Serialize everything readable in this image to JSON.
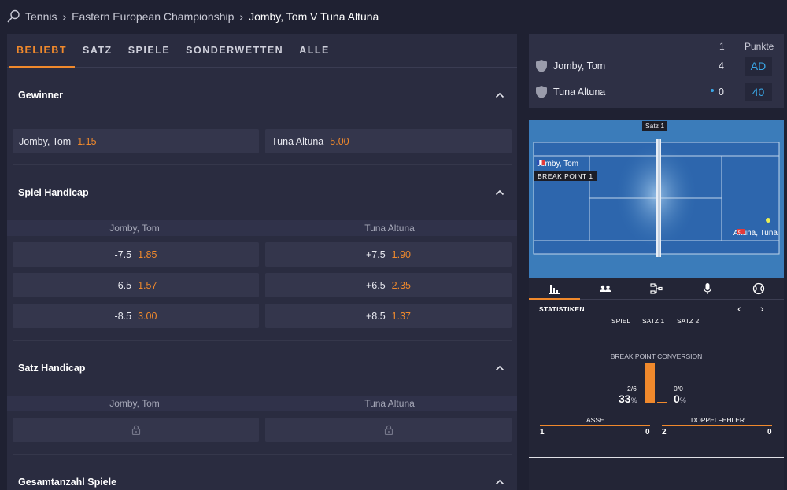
{
  "breadcrumb": {
    "sport": "Tennis",
    "competition": "Eastern European Championship",
    "match": "Jomby, Tom V Tuna Altuna"
  },
  "tabs": [
    "BELIEBT",
    "SATZ",
    "SPIELE",
    "SONDERWETTEN",
    "ALLE"
  ],
  "active_tab": "BELIEBT",
  "markets": {
    "winner": {
      "title": "Gewinner",
      "options": [
        {
          "name": "Jomby, Tom",
          "price": "1.15"
        },
        {
          "name": "Tuna Altuna",
          "price": "5.00"
        }
      ]
    },
    "game_handicap": {
      "title": "Spiel Handicap",
      "columns": [
        "Jomby, Tom",
        "Tuna Altuna"
      ],
      "rows": [
        [
          {
            "line": "-7.5",
            "price": "1.85"
          },
          {
            "line": "+7.5",
            "price": "1.90"
          }
        ],
        [
          {
            "line": "-6.5",
            "price": "1.57"
          },
          {
            "line": "+6.5",
            "price": "2.35"
          }
        ],
        [
          {
            "line": "-8.5",
            "price": "3.00"
          },
          {
            "line": "+8.5",
            "price": "1.37"
          }
        ]
      ]
    },
    "set_handicap": {
      "title": "Satz Handicap",
      "columns": [
        "Jomby, Tom",
        "Tuna Altuna"
      ]
    },
    "total_games": {
      "title": "Gesamtanzahl Spiele"
    }
  },
  "scoreboard": {
    "set_header": "1",
    "points_header": "Punkte",
    "players": [
      {
        "name": "Jomby, Tom",
        "set1": "4",
        "points": "AD"
      },
      {
        "name": "Tuna Altuna",
        "set1": "0",
        "points": "40"
      }
    ]
  },
  "court": {
    "set_label": "Satz 1",
    "player1": "Jomby, Tom",
    "player2": "Altuna, Tuna",
    "event": "BREAK POINT 1"
  },
  "stats": {
    "tab_icons": [
      "stats-bars-icon",
      "players-icon",
      "bracket-icon",
      "microphone-icon",
      "tennis-ball-icon"
    ],
    "title": "STATISTIKEN",
    "columns": [
      "SPIEL",
      "SATZ 1",
      "SATZ 2"
    ],
    "break_point": {
      "label": "BREAK POINT CONVERSION",
      "p1_fraction": "2/6",
      "p1_percent": "33",
      "p2_fraction": "0/0",
      "p2_percent": "0",
      "pct_sign": "%",
      "p1_value": 33,
      "p2_value": 0
    },
    "aces": {
      "label": "ASSE",
      "p1": "1",
      "p2": "0"
    },
    "double_faults": {
      "label": "DOPPELFEHLER",
      "p1": "2",
      "p2": "0"
    }
  },
  "colors": {
    "accent": "#f0892c",
    "link": "#3aa8e8",
    "court": "#3c7dba"
  }
}
